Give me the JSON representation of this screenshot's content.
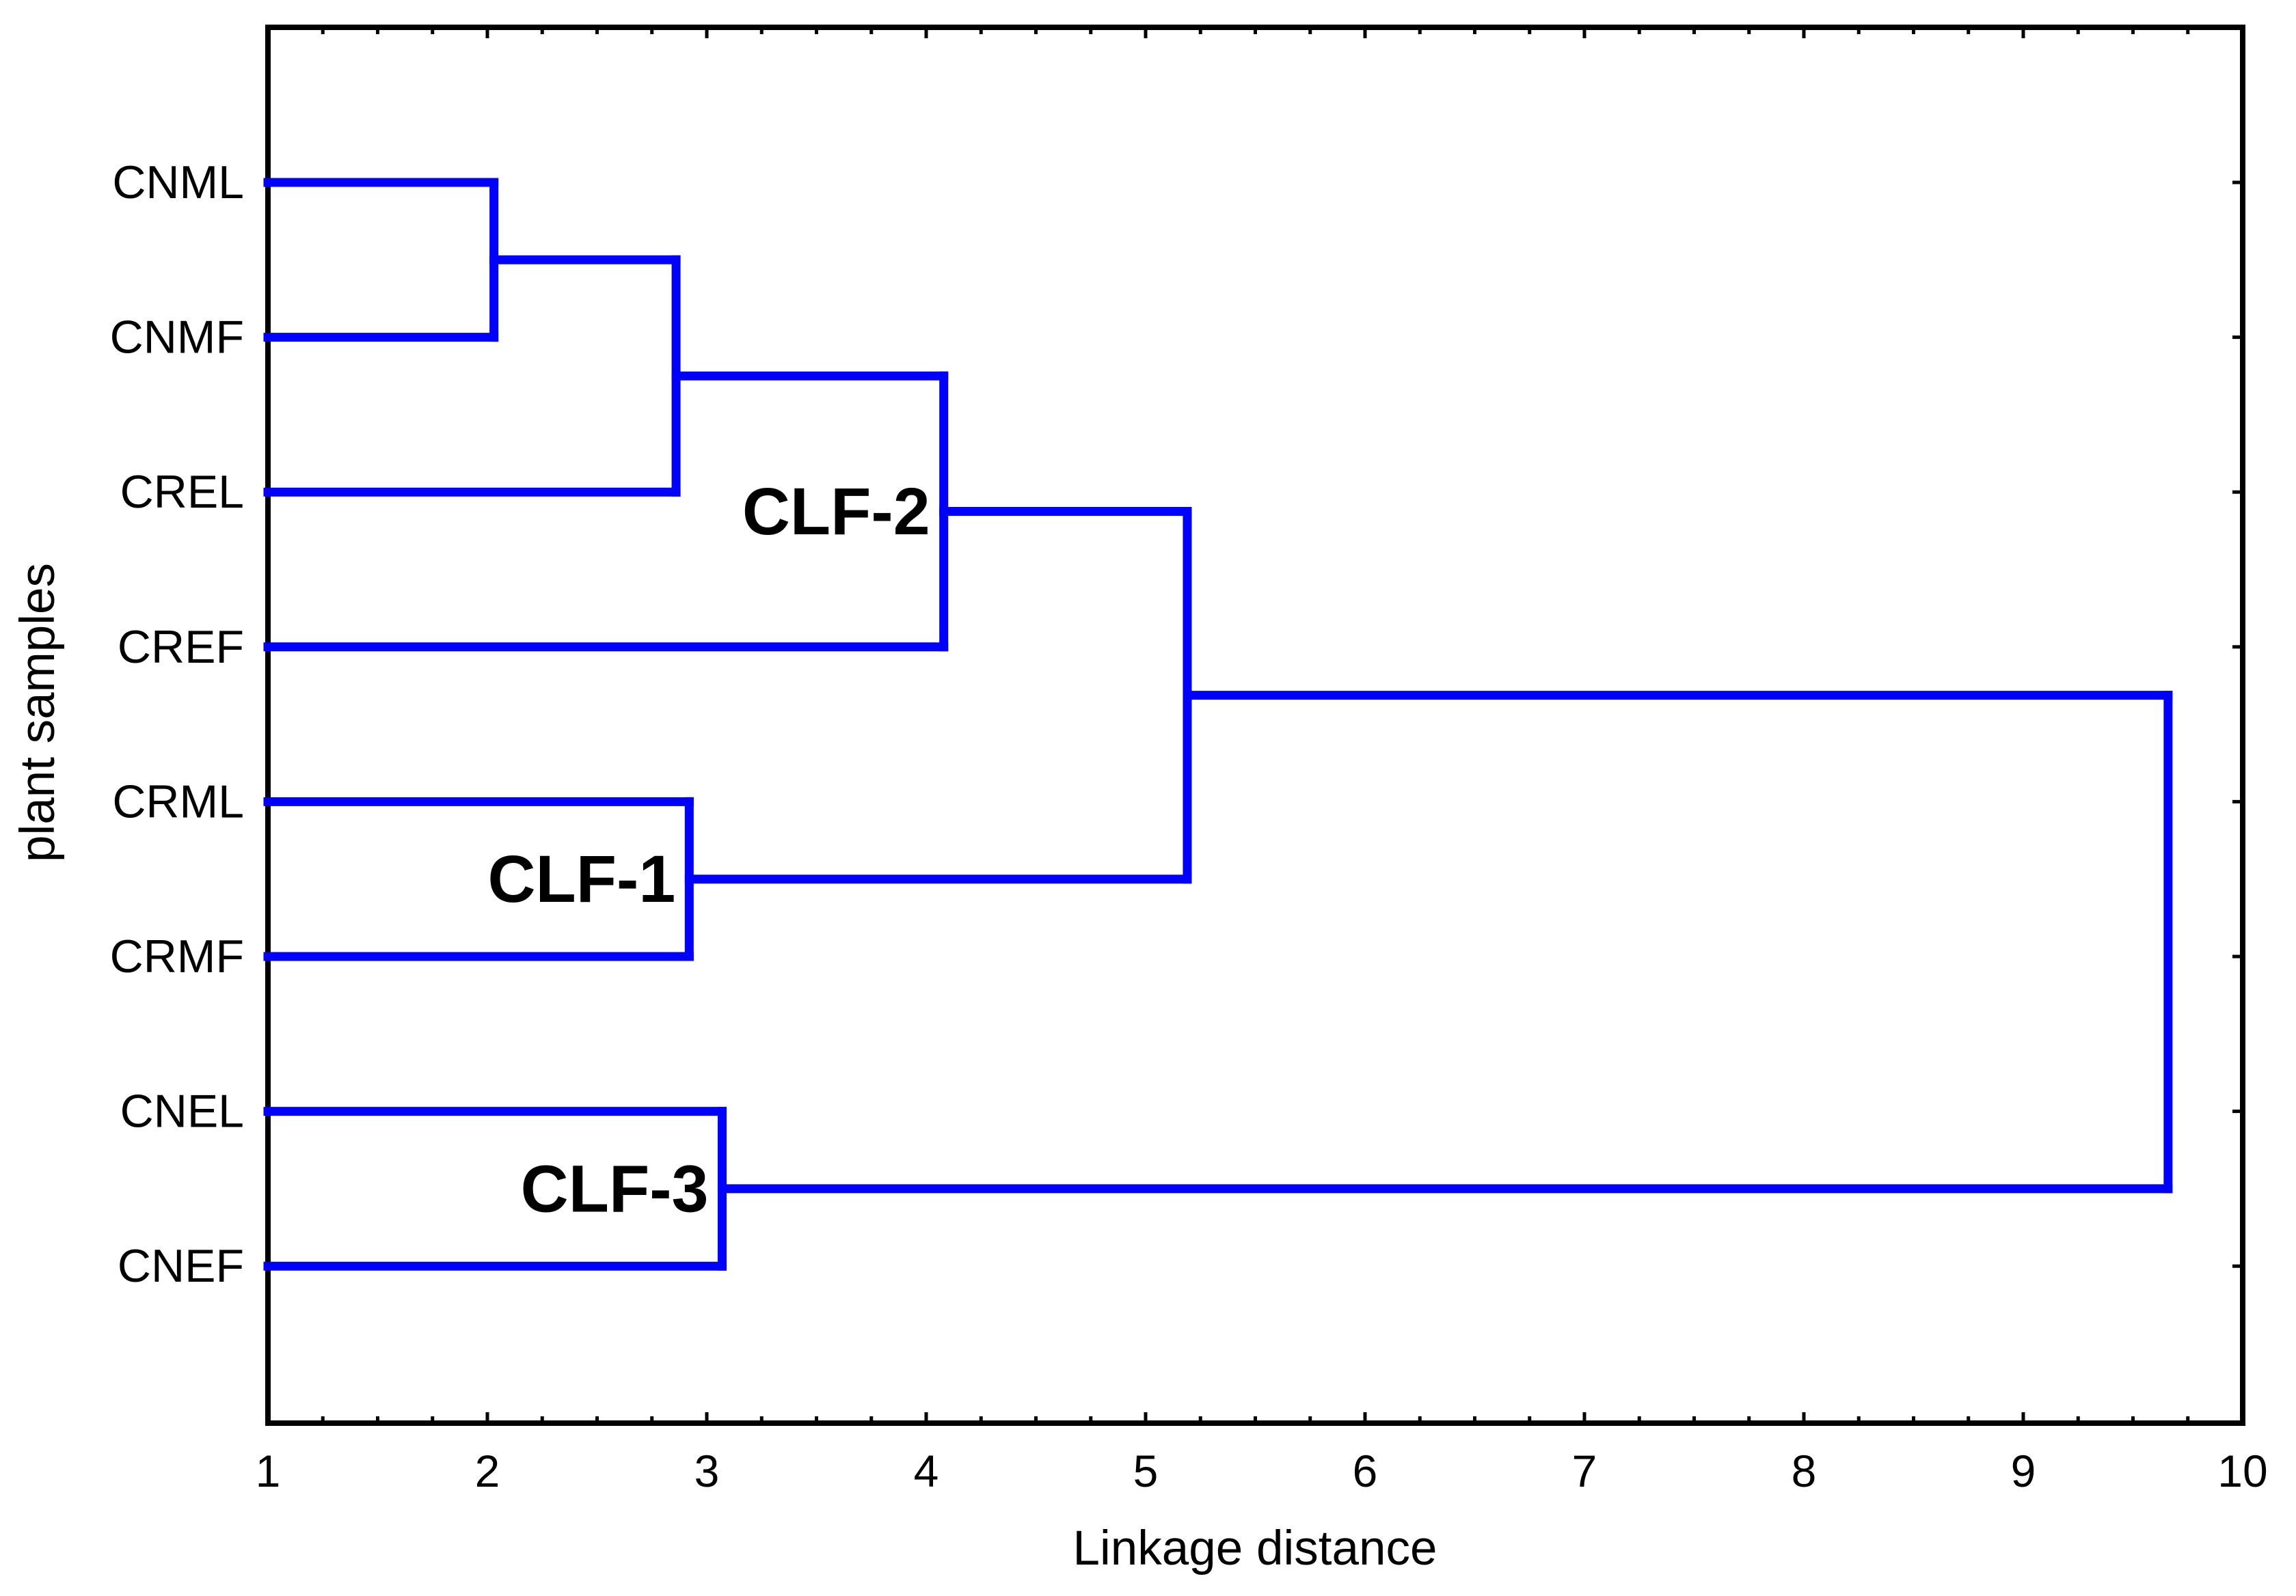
{
  "figure": {
    "background": "#ffffff",
    "line_color": "#0000FE",
    "axis_color": "#000000"
  },
  "axes": {
    "x_title": "Linkage distance",
    "y_title": "plant samples",
    "x_ticks": [
      1,
      2,
      3,
      4,
      5,
      6,
      7,
      8,
      9,
      10
    ],
    "x_minor_step": 0.25,
    "x_range": [
      1,
      10
    ]
  },
  "chart_data": {
    "type": "dendrogram",
    "orientation": "horizontal",
    "title": "",
    "xlabel": "Linkage distance",
    "ylabel": "plant samples",
    "xlim": [
      1,
      10
    ],
    "x_minor_tick_step": 0.25,
    "grid": false,
    "leaves": [
      "CNML",
      "CNMF",
      "CREL",
      "CREF",
      "CRML",
      "CRMF",
      "CNEL",
      "CNEF"
    ],
    "merges": [
      {
        "id": "M0",
        "children": [
          "CNML",
          "CNMF"
        ],
        "distance": 2.03
      },
      {
        "id": "M1",
        "children": [
          "M0",
          "CREL"
        ],
        "distance": 2.86
      },
      {
        "id": "M2",
        "children": [
          "M1",
          "CREF"
        ],
        "distance": 4.08
      },
      {
        "id": "M3",
        "children": [
          "CRML",
          "CRMF"
        ],
        "distance": 2.92
      },
      {
        "id": "M4",
        "children": [
          "M2",
          "M3"
        ],
        "distance": 5.19
      },
      {
        "id": "M5",
        "children": [
          "CNEL",
          "CNEF"
        ],
        "distance": 3.07
      },
      {
        "id": "M6",
        "children": [
          "M4",
          "M5"
        ],
        "distance": 9.66
      }
    ],
    "cluster_labels": [
      {
        "text": "CLF-2",
        "merge": "M2"
      },
      {
        "text": "CLF-1",
        "merge": "M3"
      },
      {
        "text": "CLF-3",
        "merge": "M5"
      }
    ]
  }
}
